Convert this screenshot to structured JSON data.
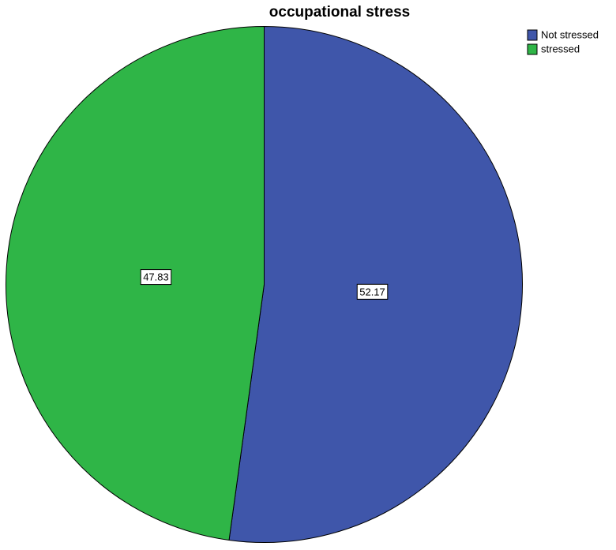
{
  "chart_data": {
    "type": "pie",
    "title": "occupational stress",
    "categories": [
      "Not stressed",
      "stressed"
    ],
    "values": [
      52.17,
      47.83
    ],
    "colors": [
      "#3f56aa",
      "#2fb547"
    ],
    "legend": "top-right"
  }
}
